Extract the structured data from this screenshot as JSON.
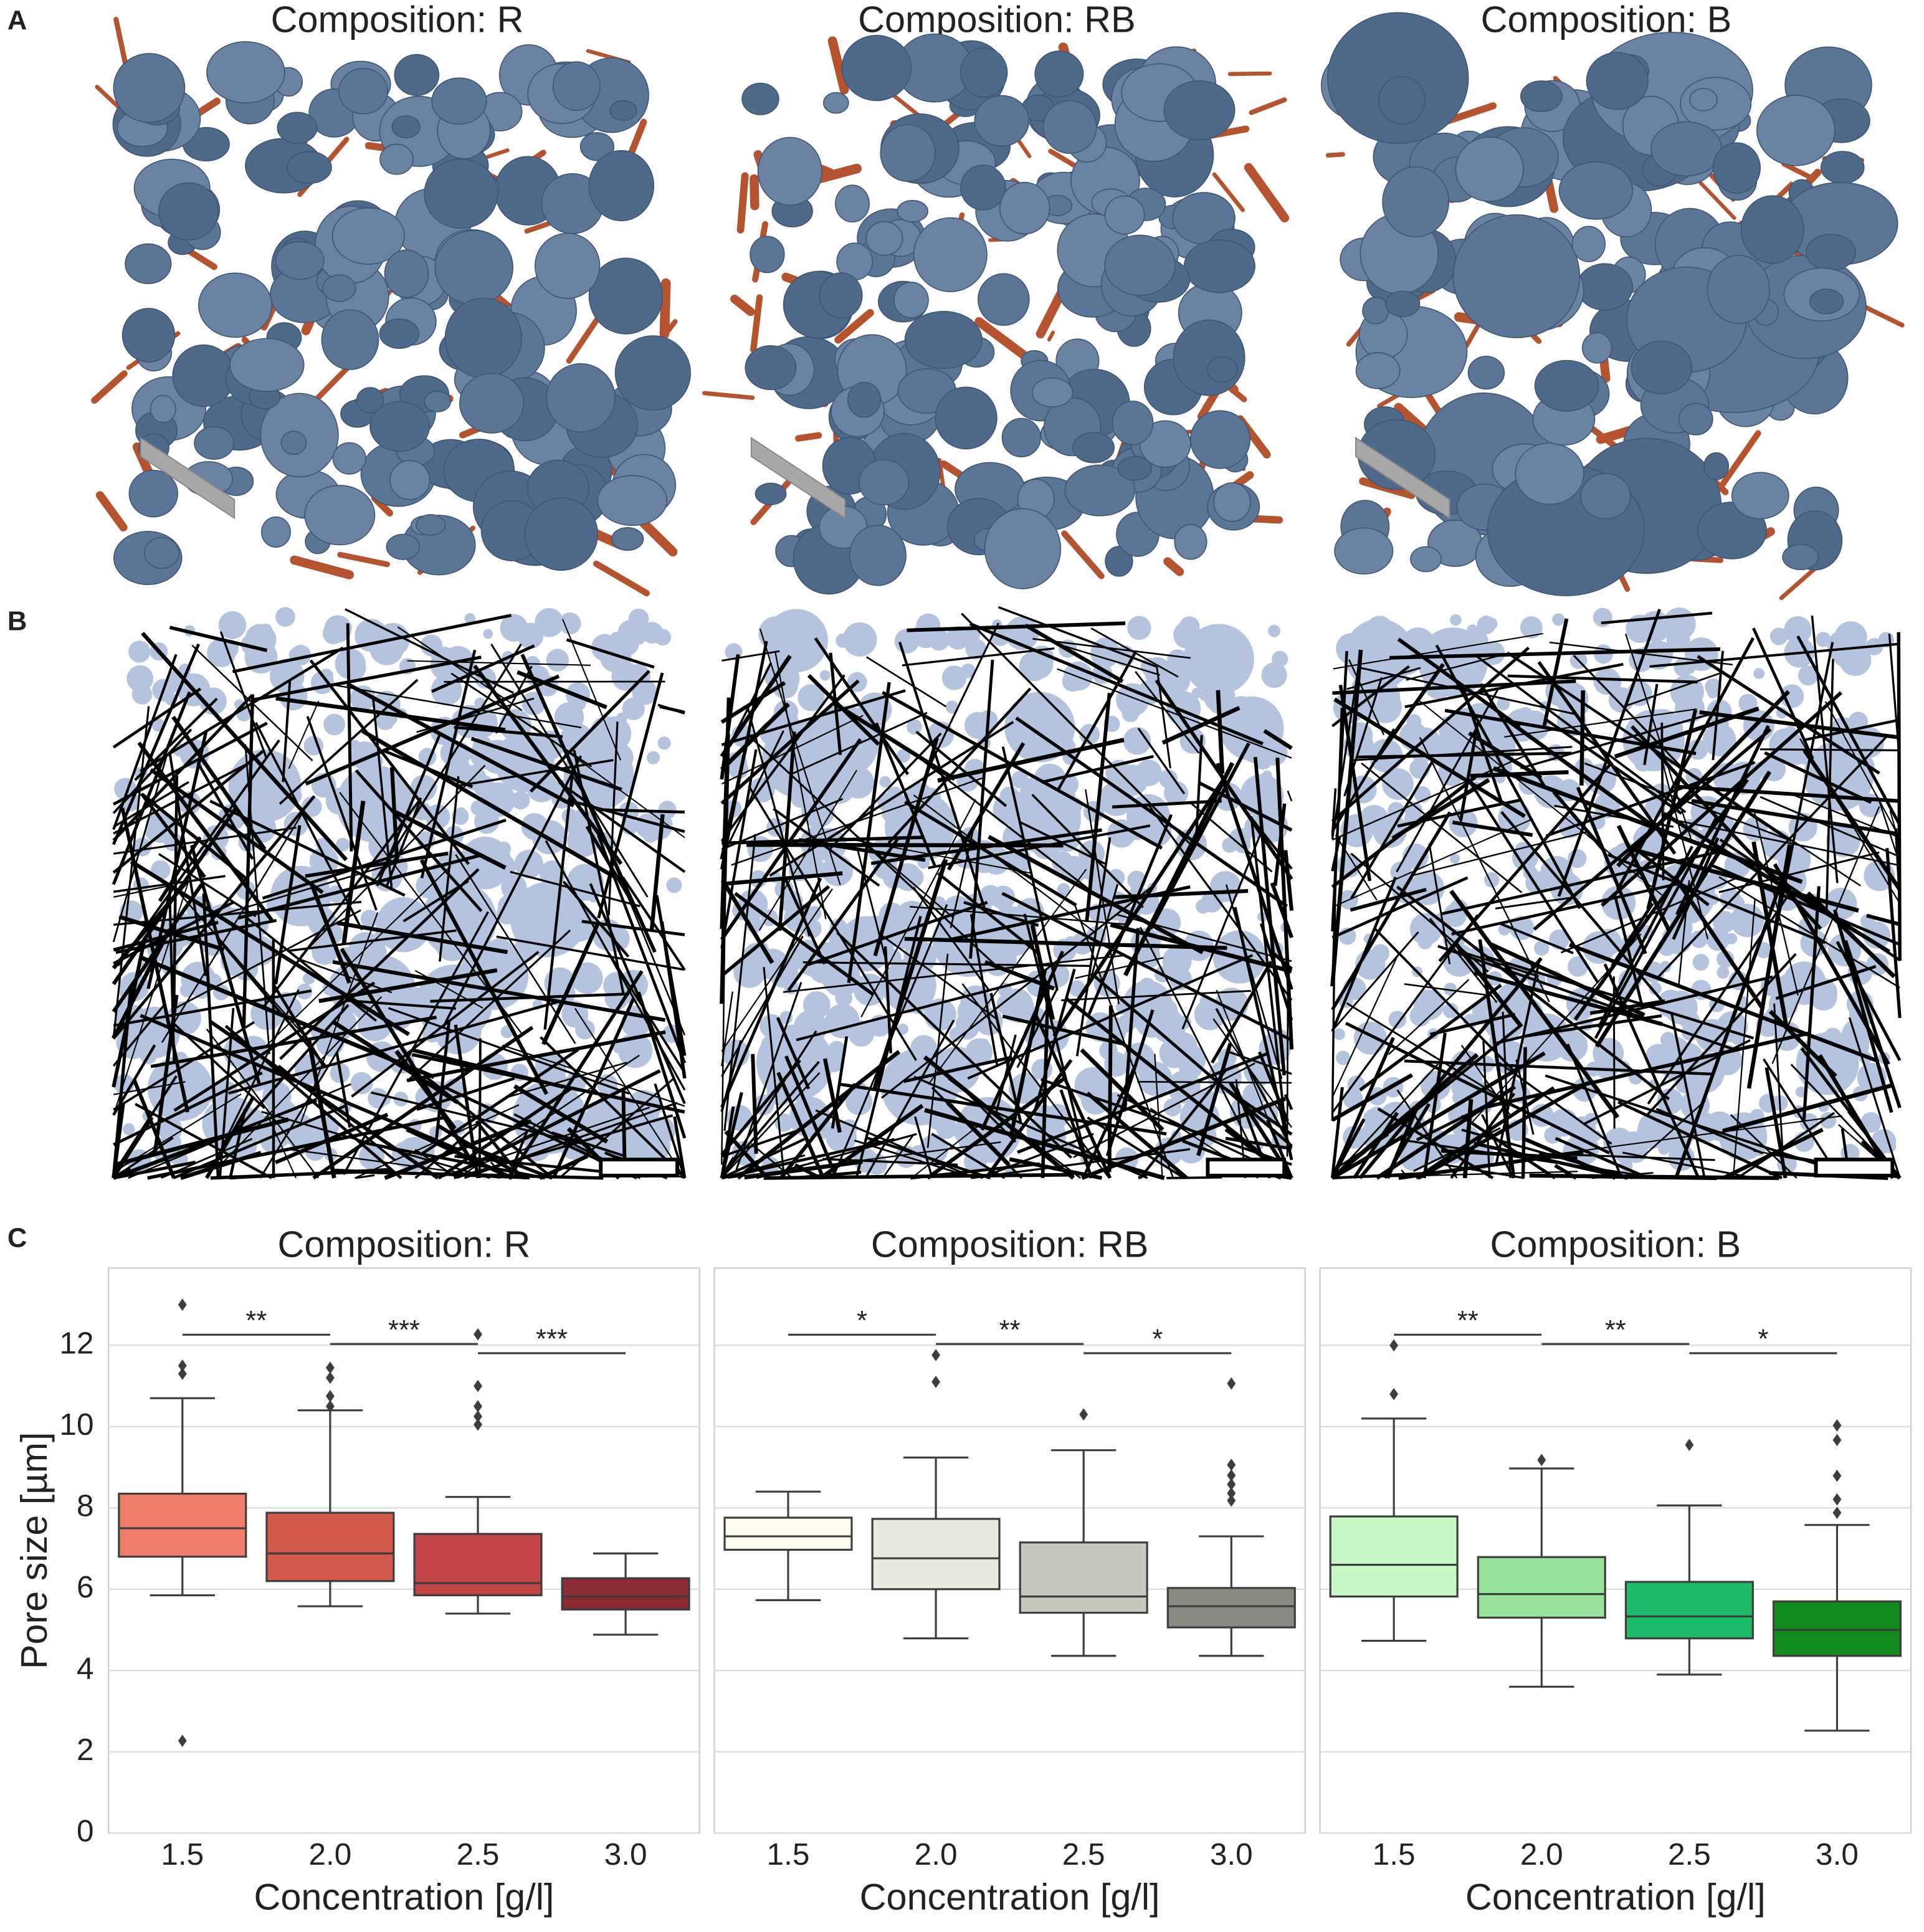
{
  "panel_labels": [
    "A",
    "B",
    "C"
  ],
  "panel_a": {
    "titles": [
      "Composition: R",
      "Composition: RB",
      "Composition: B"
    ]
  },
  "chart_data": [
    {
      "type": "box",
      "title": "Composition: R",
      "x_label": "Concentration [g/l]",
      "y_label": "Pore size [µm]",
      "categories": [
        "1.5",
        "2.0",
        "2.5",
        "3.0"
      ],
      "colors": [
        "#ee7d69",
        "#d35a4a",
        "#c24444",
        "#8b2a30"
      ],
      "whisker_low": [
        5.85,
        5.58,
        5.4,
        4.88
      ],
      "q1": [
        6.8,
        6.2,
        5.85,
        5.5
      ],
      "median": [
        7.5,
        6.88,
        6.15,
        5.82
      ],
      "q3": [
        8.35,
        7.88,
        7.36,
        6.27
      ],
      "whisker_high": [
        10.7,
        10.4,
        8.27,
        6.88
      ],
      "outliers": [
        [
          13.0,
          11.5,
          11.3,
          2.27
        ],
        [
          11.45,
          11.2,
          10.75,
          10.5
        ],
        [
          12.27,
          11.0,
          10.5,
          10.25,
          10.05
        ],
        []
      ],
      "significance": [
        {
          "from": "1.5",
          "to": "2.0",
          "label": "**"
        },
        {
          "from": "2.0",
          "to": "2.5",
          "label": "***"
        },
        {
          "from": "2.5",
          "to": "3.0",
          "label": "***"
        }
      ],
      "ylim": [
        0,
        13.9
      ],
      "yticks": [
        0,
        2,
        4,
        6,
        8,
        10,
        12
      ],
      "grid": true
    },
    {
      "type": "box",
      "title": "Composition: RB",
      "x_label": "Concentration [g/l]",
      "categories": [
        "1.5",
        "2.0",
        "2.5",
        "3.0"
      ],
      "colors": [
        "#fdfcee",
        "#eaeae0",
        "#c9c8bf",
        "#8a8a82"
      ],
      "whisker_low": [
        5.73,
        4.79,
        4.36,
        4.36
      ],
      "q1": [
        6.97,
        6.0,
        5.42,
        5.06
      ],
      "median": [
        7.3,
        6.76,
        5.82,
        5.58
      ],
      "q3": [
        7.76,
        7.73,
        7.15,
        6.03
      ],
      "whisker_high": [
        8.4,
        9.24,
        9.42,
        7.3
      ],
      "outliers": [
        [],
        [
          11.76,
          11.1
        ],
        [
          10.3
        ],
        [
          11.06,
          9.06,
          8.8,
          8.58,
          8.36,
          8.18
        ]
      ],
      "significance": [
        {
          "from": "1.5",
          "to": "2.0",
          "label": "*"
        },
        {
          "from": "2.0",
          "to": "2.5",
          "label": "**"
        },
        {
          "from": "2.5",
          "to": "3.0",
          "label": "*"
        }
      ],
      "ylim": [
        0,
        13.9
      ],
      "yticks": [
        0,
        2,
        4,
        6,
        8,
        10,
        12
      ],
      "grid": true
    },
    {
      "type": "box",
      "title": "Composition: B",
      "x_label": "Concentration [g/l]",
      "categories": [
        "1.5",
        "2.0",
        "2.5",
        "3.0"
      ],
      "colors": [
        "#c8f7c8",
        "#98e39c",
        "#1dba6a",
        "#138a1d"
      ],
      "whisker_low": [
        4.73,
        3.6,
        3.9,
        2.52
      ],
      "q1": [
        5.82,
        5.3,
        4.79,
        4.36
      ],
      "median": [
        6.6,
        5.88,
        5.33,
        5.0
      ],
      "q3": [
        7.79,
        6.79,
        6.18,
        5.7
      ],
      "whisker_high": [
        10.2,
        8.97,
        8.06,
        7.58
      ],
      "outliers": [
        [
          12.0,
          10.8
        ],
        [
          9.18
        ],
        [
          9.55
        ],
        [
          10.03,
          9.67,
          8.79,
          8.21,
          7.88
        ]
      ],
      "significance": [
        {
          "from": "1.5",
          "to": "2.0",
          "label": "**"
        },
        {
          "from": "2.0",
          "to": "2.5",
          "label": "**"
        },
        {
          "from": "2.5",
          "to": "3.0",
          "label": "*"
        }
      ],
      "ylim": [
        0,
        13.9
      ],
      "yticks": [
        0,
        2,
        4,
        6,
        8,
        10,
        12
      ],
      "grid": true
    }
  ]
}
